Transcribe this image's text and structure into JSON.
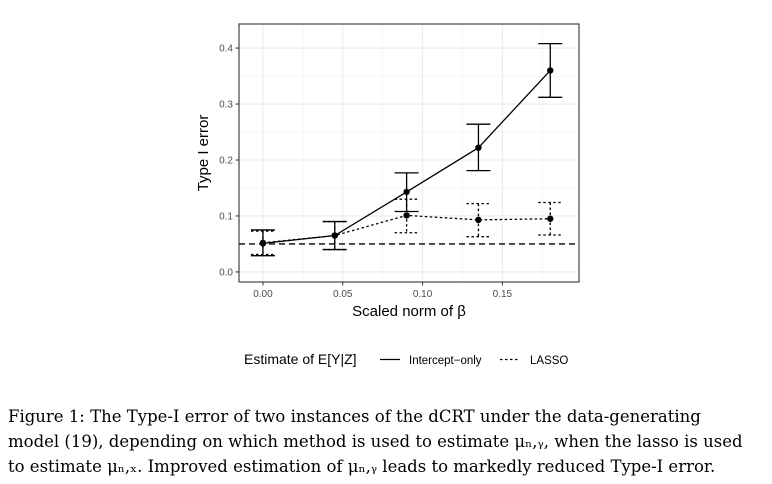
{
  "chart_data": {
    "type": "line",
    "xlabel": "Scaled norm of β",
    "ylabel": "Type I error",
    "xlim": [
      -0.015,
      0.198
    ],
    "ylim": [
      -0.018,
      0.443
    ],
    "x_ticks": [
      0.0,
      0.05,
      0.1,
      0.15
    ],
    "x_tick_labels": [
      "0.00",
      "0.05",
      "0.10",
      "0.15"
    ],
    "y_ticks": [
      0.0,
      0.1,
      0.2,
      0.3,
      0.4
    ],
    "y_tick_labels": [
      "0.0",
      "0.1",
      "0.2",
      "0.3",
      "0.4"
    ],
    "grid": true,
    "reference_line": {
      "y": 0.05,
      "style": "dashed"
    },
    "legend": {
      "title": "Estimate of E[Y|Z]",
      "placement": "bottom",
      "entries": [
        {
          "label": "Intercept−only",
          "style": "solid"
        },
        {
          "label": "LASSO",
          "style": "dotted"
        }
      ]
    },
    "series": [
      {
        "name": "Intercept−only",
        "style": "solid",
        "x": [
          0.0,
          0.045,
          0.09,
          0.135,
          0.18
        ],
        "y": [
          0.051,
          0.065,
          0.143,
          0.222,
          0.36
        ],
        "lower": [
          0.029,
          0.04,
          0.108,
          0.181,
          0.312
        ],
        "upper": [
          0.075,
          0.09,
          0.177,
          0.264,
          0.408
        ]
      },
      {
        "name": "LASSO",
        "style": "dotted",
        "x": [
          0.0,
          0.045,
          0.09,
          0.135,
          0.18
        ],
        "y": [
          0.052,
          0.065,
          0.101,
          0.093,
          0.095
        ],
        "lower": [
          0.031,
          0.04,
          0.07,
          0.063,
          0.066
        ],
        "upper": [
          0.073,
          0.09,
          0.13,
          0.122,
          0.124
        ]
      }
    ]
  },
  "caption": {
    "line1": "Figure 1:  The Type-I error of two instances of the dCRT under the data-generating",
    "line2": "model (19), depending on which method is used to estimate μₙ,ᵧ, when the lasso is used",
    "line3": "to estimate μₙ,ₓ. Improved estimation of μₙ,ᵧ leads to markedly reduced Type-I error."
  }
}
